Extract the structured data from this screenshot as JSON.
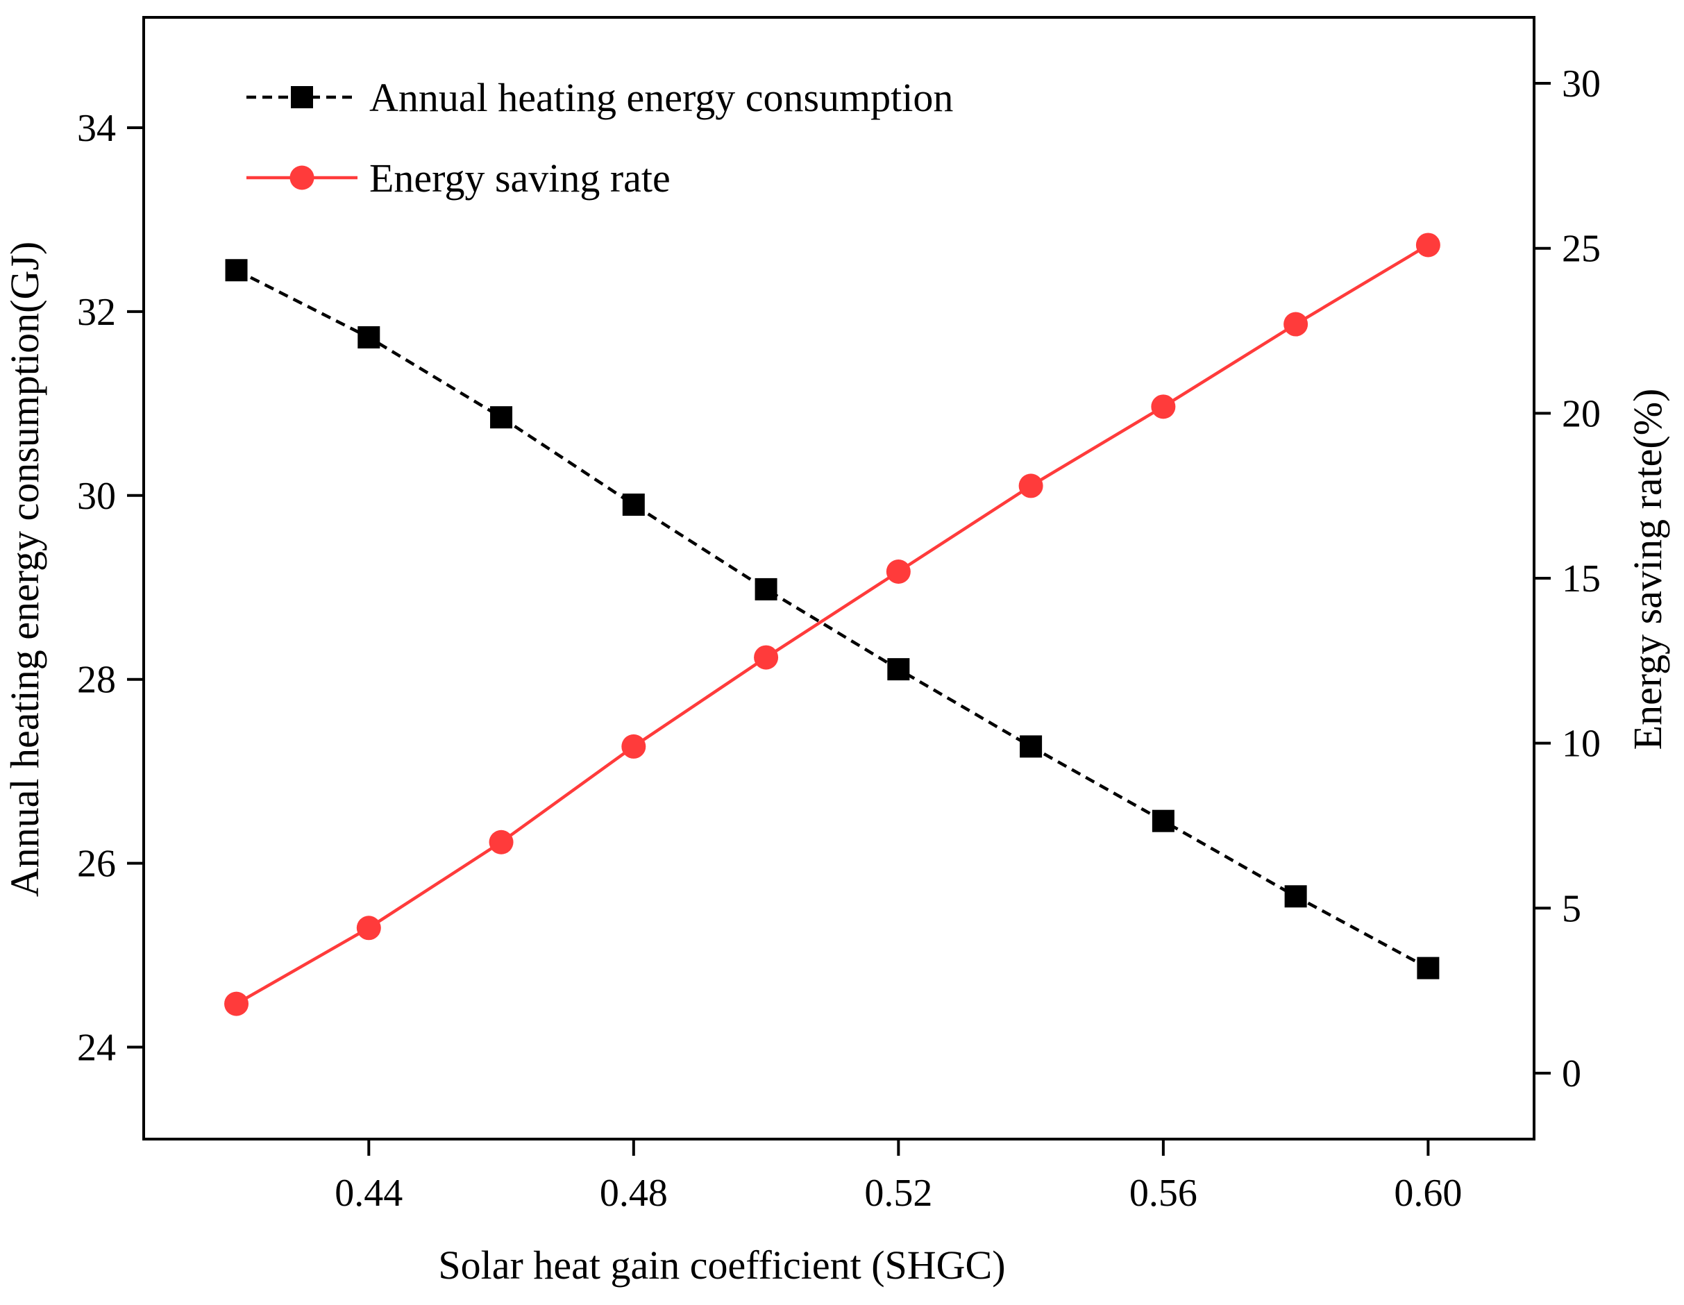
{
  "chart_data": {
    "type": "line",
    "title": "",
    "xlabel": "Solar heat gain coefficient (SHGC)",
    "ylabel_left": "Annual heating energy consumption(GJ)",
    "ylabel_right": "Energy saving rate(%)",
    "x": [
      0.42,
      0.44,
      0.46,
      0.48,
      0.5,
      0.52,
      0.54,
      0.56,
      0.58,
      0.6
    ],
    "xlim": [
      0.406,
      0.616
    ],
    "ylim_left": [
      23.0,
      35.2
    ],
    "ylim_right": [
      -2.0,
      32.0
    ],
    "x_ticks": [
      0.44,
      0.48,
      0.52,
      0.56,
      0.6
    ],
    "x_tick_labels": [
      "0.44",
      "0.48",
      "0.52",
      "0.56",
      "0.60"
    ],
    "y_left_ticks": [
      24,
      26,
      28,
      30,
      32,
      34
    ],
    "y_left_tick_labels": [
      "24",
      "26",
      "28",
      "30",
      "32",
      "34"
    ],
    "y_right_ticks": [
      0,
      5,
      10,
      15,
      20,
      25,
      30
    ],
    "y_right_tick_labels": [
      "0",
      "5",
      "10",
      "15",
      "20",
      "25",
      "30"
    ],
    "grid": false,
    "legend_position": "top-left",
    "series": [
      {
        "name": "Annual heating energy consumption",
        "axis": "left",
        "color": "#000000",
        "line_style": "dashed",
        "marker": "square",
        "values": [
          32.45,
          31.72,
          30.85,
          29.9,
          28.98,
          28.11,
          27.27,
          26.46,
          25.64,
          24.86
        ]
      },
      {
        "name": "Energy saving rate",
        "axis": "right",
        "color": "#ff3b3b",
        "line_style": "solid",
        "marker": "circle",
        "values": [
          2.1,
          4.4,
          7.0,
          9.9,
          12.6,
          15.2,
          17.8,
          20.2,
          22.7,
          25.1
        ]
      }
    ]
  }
}
